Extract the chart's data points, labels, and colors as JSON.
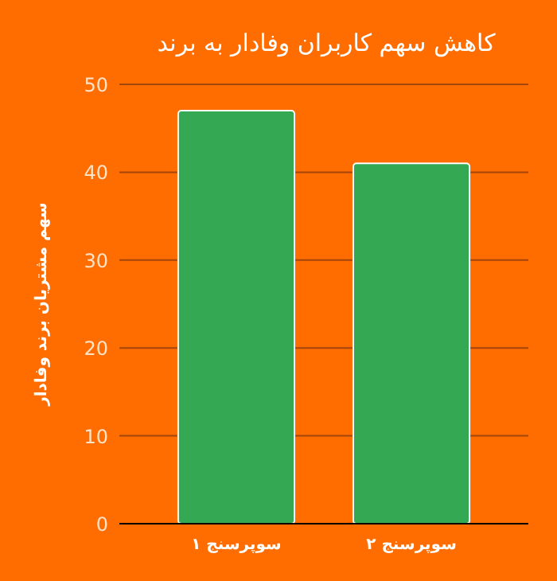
{
  "chart_data": {
    "type": "bar",
    "title": "کاهش سهم کاربران وفادار به برند",
    "ylabel": "سهم مشتریان برند وفادار",
    "categories": [
      "سوپرسنج ۱",
      "سوپرسنج ۲"
    ],
    "values": [
      47,
      41
    ],
    "color": "#34a853",
    "ylim": [
      0,
      50
    ],
    "yticks": [
      0,
      10,
      20,
      30,
      40,
      50
    ],
    "grid": "y"
  }
}
